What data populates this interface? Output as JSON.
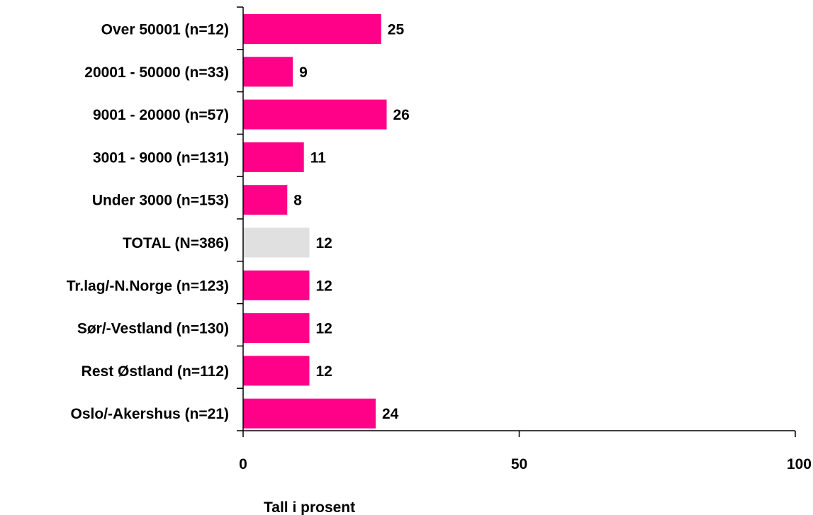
{
  "chart_data": {
    "type": "bar",
    "orientation": "horizontal",
    "categories": [
      "Over 50001 (n=12)",
      "20001 - 50000 (n=33)",
      "9001 - 20000 (n=57)",
      "3001 - 9000 (n=131)",
      "Under 3000 (n=153)",
      "TOTAL (N=386)",
      "Tr.lag/-N.Norge (n=123)",
      "Sør/-Vestland (n=130)",
      "Rest Østland (n=112)",
      "Oslo/-Akershus (n=21)"
    ],
    "values": [
      25,
      9,
      26,
      11,
      8,
      12,
      12,
      12,
      12,
      24
    ],
    "highlight_index": 5,
    "colors": {
      "bar": "#ff0088",
      "highlight": "#e0e0e0",
      "axis": "#000000"
    },
    "xlim": [
      0,
      100
    ],
    "xticks": [
      0,
      50,
      100
    ],
    "xlabel": "Tall i prosent",
    "ylabel": "",
    "title": "",
    "grid": false,
    "legend": "none"
  }
}
